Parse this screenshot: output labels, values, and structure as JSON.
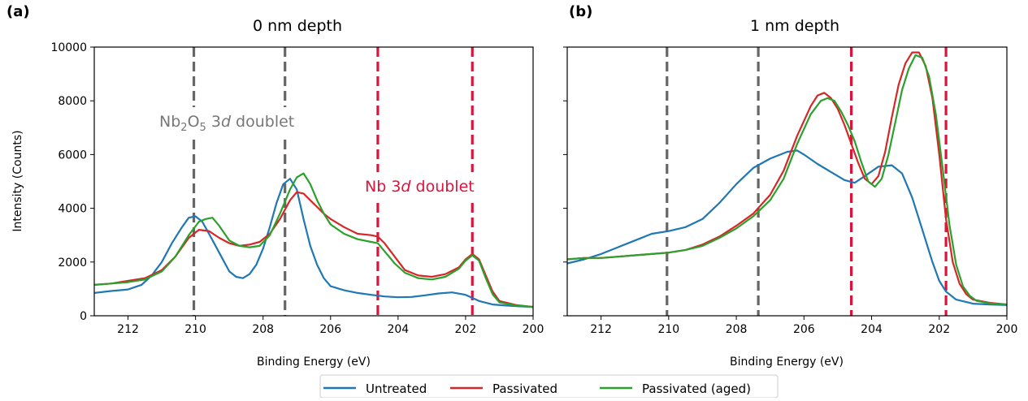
{
  "chart_data": [
    {
      "type": "line",
      "panel_label": "(a)",
      "title": "0 nm depth",
      "xlabel": "Binding Energy (eV)",
      "ylabel": "Intensity (Counts)",
      "xlim": [
        213,
        200
      ],
      "ylim": [
        0,
        10000
      ],
      "xticks": [
        "212",
        "210",
        "208",
        "206",
        "204",
        "202",
        "200"
      ],
      "yticks": [
        "0",
        "2000",
        "4000",
        "6000",
        "8000",
        "10000"
      ],
      "vlines": [
        {
          "x": 210.05,
          "color": "#666666"
        },
        {
          "x": 207.35,
          "color": "#666666"
        },
        {
          "x": 204.6,
          "color": "#dc143c"
        },
        {
          "x": 201.8,
          "color": "#dc143c"
        }
      ],
      "annotations": {
        "oxide": {
          "prefix": "Nb",
          "sub1": "2",
          "mid": "O",
          "sub2": "5",
          "space": " 3",
          "italic": "d",
          "suffix": " doublet",
          "color": "#777777"
        },
        "metal": {
          "prefix": "Nb 3",
          "italic": "d",
          "suffix": " doublet",
          "color": "#dc143c"
        }
      },
      "series": [
        {
          "name": "Untreated",
          "color": "#1f77b4",
          "x": [
            213,
            212.5,
            212,
            211.6,
            211.3,
            211,
            210.7,
            210.4,
            210.2,
            210,
            209.8,
            209.6,
            209.3,
            209,
            208.8,
            208.6,
            208.4,
            208.2,
            208,
            207.8,
            207.6,
            207.4,
            207.2,
            207,
            206.8,
            206.6,
            206.4,
            206.2,
            206,
            205.6,
            205.2,
            204.8,
            204.4,
            204,
            203.6,
            203.2,
            202.8,
            202.4,
            202,
            201.6,
            201.2,
            200.8,
            200.4,
            200
          ],
          "y": [
            850,
            920,
            980,
            1150,
            1500,
            2000,
            2700,
            3300,
            3650,
            3700,
            3500,
            3050,
            2350,
            1650,
            1450,
            1400,
            1550,
            1900,
            2500,
            3300,
            4200,
            4900,
            5100,
            4700,
            3600,
            2600,
            1900,
            1400,
            1100,
            950,
            850,
            780,
            720,
            690,
            700,
            760,
            830,
            870,
            780,
            550,
            420,
            380,
            350,
            330
          ]
        },
        {
          "name": "Passivated",
          "color": "#d62728",
          "x": [
            213,
            212.5,
            212,
            211.5,
            211,
            210.6,
            210.2,
            209.9,
            209.6,
            209.3,
            209,
            208.7,
            208.4,
            208.1,
            207.8,
            207.5,
            207.2,
            207,
            206.8,
            206.6,
            206.4,
            206.2,
            206,
            205.6,
            205.2,
            204.8,
            204.6,
            204.4,
            204.1,
            203.8,
            203.4,
            203,
            202.6,
            202.2,
            202,
            201.8,
            201.6,
            201.4,
            201.2,
            201,
            200.5,
            200
          ],
          "y": [
            1150,
            1200,
            1300,
            1400,
            1700,
            2200,
            2900,
            3200,
            3150,
            2900,
            2700,
            2600,
            2650,
            2750,
            3050,
            3600,
            4300,
            4600,
            4550,
            4300,
            4050,
            3800,
            3600,
            3300,
            3050,
            3000,
            2950,
            2700,
            2200,
            1700,
            1500,
            1450,
            1550,
            1800,
            2100,
            2300,
            2100,
            1500,
            900,
            550,
            400,
            330
          ]
        },
        {
          "name": "Passivated (aged)",
          "color": "#2ca02c",
          "x": [
            213,
            212.5,
            212,
            211.5,
            211,
            210.6,
            210.2,
            209.9,
            209.7,
            209.5,
            209.3,
            209,
            208.7,
            208.4,
            208.1,
            207.8,
            207.5,
            207.2,
            207,
            206.8,
            206.6,
            206.4,
            206.2,
            206,
            205.6,
            205.2,
            204.8,
            204.6,
            204.4,
            204.1,
            203.8,
            203.4,
            203,
            202.6,
            202.2,
            202,
            201.8,
            201.6,
            201.4,
            201.2,
            201,
            200.5,
            200
          ],
          "y": [
            1150,
            1200,
            1250,
            1350,
            1650,
            2200,
            3000,
            3500,
            3600,
            3650,
            3350,
            2800,
            2600,
            2550,
            2600,
            3000,
            3800,
            4700,
            5150,
            5300,
            4900,
            4300,
            3800,
            3400,
            3050,
            2850,
            2750,
            2700,
            2400,
            1950,
            1600,
            1400,
            1350,
            1450,
            1750,
            2050,
            2250,
            2050,
            1400,
            800,
            500,
            380,
            330
          ]
        }
      ]
    },
    {
      "type": "line",
      "panel_label": "(b)",
      "title": "1 nm depth",
      "xlabel": "Binding Energy (eV)",
      "ylabel": "",
      "xlim": [
        213,
        200
      ],
      "ylim": [
        0,
        10000
      ],
      "xticks": [
        "212",
        "210",
        "208",
        "206",
        "204",
        "202",
        "200"
      ],
      "vlines": [
        {
          "x": 210.05,
          "color": "#666666"
        },
        {
          "x": 207.35,
          "color": "#666666"
        },
        {
          "x": 204.6,
          "color": "#dc143c"
        },
        {
          "x": 201.8,
          "color": "#dc143c"
        }
      ],
      "series": [
        {
          "name": "Untreated",
          "color": "#1f77b4",
          "x": [
            213,
            212.5,
            212,
            211.5,
            211,
            210.5,
            210,
            209.5,
            209,
            208.5,
            208,
            207.5,
            207,
            206.5,
            206.2,
            206,
            205.6,
            205.2,
            204.8,
            204.5,
            204.2,
            203.8,
            203.4,
            203.1,
            202.8,
            202.5,
            202.2,
            202,
            201.8,
            201.5,
            201,
            200.5,
            200
          ],
          "y": [
            1950,
            2100,
            2300,
            2550,
            2800,
            3050,
            3150,
            3300,
            3600,
            4200,
            4900,
            5500,
            5850,
            6100,
            6150,
            6000,
            5650,
            5350,
            5050,
            4950,
            5200,
            5550,
            5600,
            5300,
            4400,
            3200,
            2000,
            1300,
            900,
            600,
            450,
            420,
            400
          ]
        },
        {
          "name": "Passivated",
          "color": "#d62728",
          "x": [
            213,
            212.5,
            212,
            211.5,
            211,
            210.5,
            210,
            209.5,
            209,
            208.5,
            208,
            207.5,
            207,
            206.6,
            206.2,
            205.8,
            205.6,
            205.4,
            205.2,
            205,
            204.8,
            204.6,
            204.4,
            204.2,
            204,
            203.8,
            203.6,
            203.4,
            203.2,
            203,
            202.8,
            202.6,
            202.4,
            202.2,
            202,
            201.8,
            201.6,
            201.4,
            201.2,
            201,
            200.5,
            200
          ],
          "y": [
            2100,
            2150,
            2150,
            2200,
            2250,
            2300,
            2350,
            2450,
            2650,
            2950,
            3350,
            3800,
            4500,
            5400,
            6700,
            7800,
            8200,
            8300,
            8100,
            7700,
            7100,
            6400,
            5700,
            5100,
            4900,
            5200,
            6100,
            7400,
            8600,
            9400,
            9800,
            9800,
            9300,
            8100,
            6000,
            3600,
            2000,
            1200,
            800,
            600,
            480,
            420
          ]
        },
        {
          "name": "Passivated (aged)",
          "color": "#2ca02c",
          "x": [
            213,
            212.5,
            212,
            211.5,
            211,
            210.5,
            210,
            209.5,
            209,
            208.5,
            208,
            207.5,
            207,
            206.6,
            206.2,
            205.8,
            205.5,
            205.3,
            205.1,
            204.9,
            204.7,
            204.5,
            204.3,
            204.1,
            203.9,
            203.7,
            203.5,
            203.3,
            203.1,
            202.9,
            202.7,
            202.5,
            202.3,
            202.1,
            201.9,
            201.7,
            201.5,
            201.3,
            201.1,
            200.9,
            200.5,
            200
          ],
          "y": [
            2100,
            2150,
            2150,
            2200,
            2250,
            2300,
            2350,
            2450,
            2600,
            2900,
            3250,
            3700,
            4300,
            5100,
            6400,
            7500,
            8000,
            8100,
            8000,
            7600,
            7100,
            6500,
            5700,
            5000,
            4800,
            5100,
            6000,
            7200,
            8400,
            9200,
            9700,
            9600,
            8900,
            7500,
            5500,
            3400,
            1900,
            1100,
            750,
            560,
            460,
            420
          ]
        }
      ]
    }
  ],
  "legend": {
    "entries": [
      {
        "label": "Untreated",
        "color": "#1f77b4"
      },
      {
        "label": "Passivated",
        "color": "#d62728"
      },
      {
        "label": "Passivated (aged)",
        "color": "#2ca02c"
      }
    ],
    "placement": "bottom-center"
  }
}
